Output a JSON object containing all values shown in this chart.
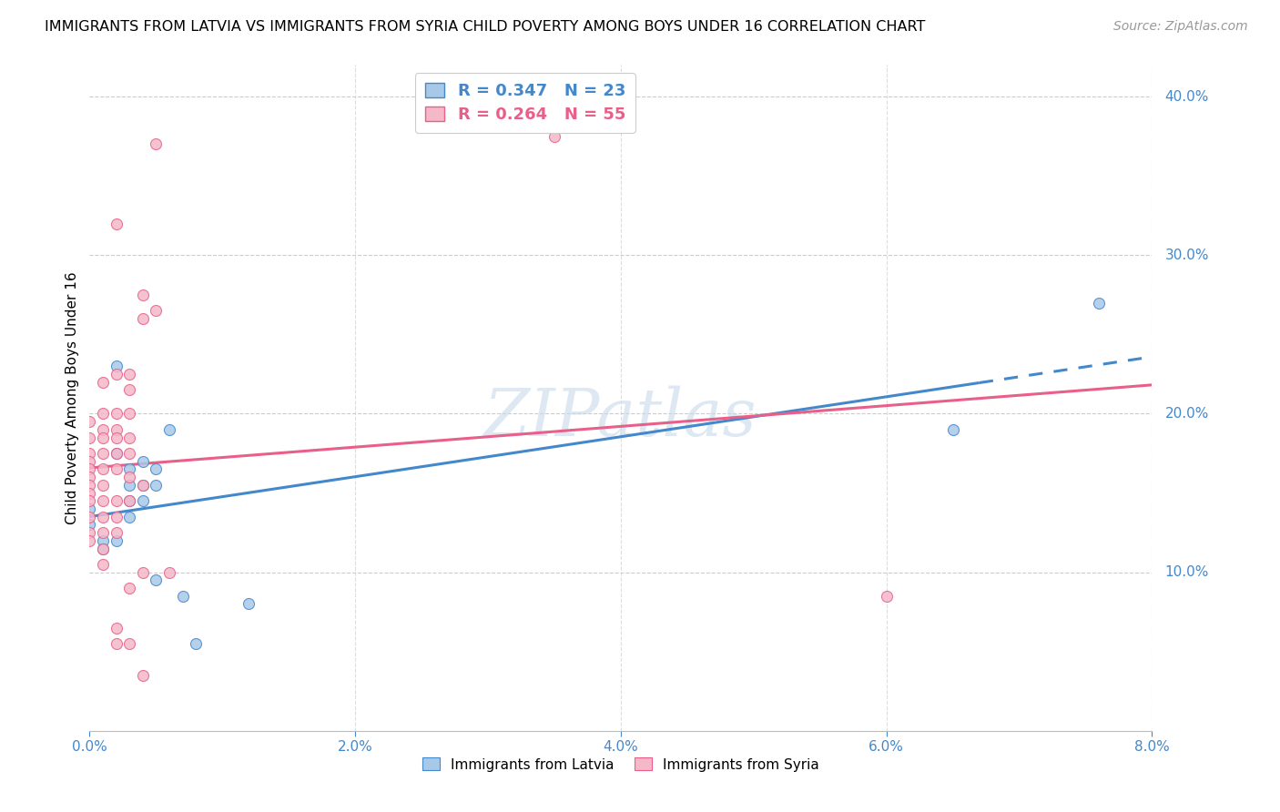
{
  "title": "IMMIGRANTS FROM LATVIA VS IMMIGRANTS FROM SYRIA CHILD POVERTY AMONG BOYS UNDER 16 CORRELATION CHART",
  "source": "Source: ZipAtlas.com",
  "ylabel": "Child Poverty Among Boys Under 16",
  "watermark": "ZIPatlas",
  "latvia_color": "#a8c8e8",
  "syria_color": "#f4b8c8",
  "latvia_line_color": "#4488cc",
  "syria_line_color": "#e8608a",
  "latvia_R": 0.347,
  "latvia_N": 23,
  "syria_R": 0.264,
  "syria_N": 55,
  "xlim": [
    0.0,
    0.08
  ],
  "ylim": [
    0.0,
    0.42
  ],
  "latvia_points": [
    [
      0.0,
      0.14
    ],
    [
      0.0,
      0.13
    ],
    [
      0.001,
      0.12
    ],
    [
      0.001,
      0.115
    ],
    [
      0.002,
      0.23
    ],
    [
      0.002,
      0.175
    ],
    [
      0.002,
      0.12
    ],
    [
      0.003,
      0.165
    ],
    [
      0.003,
      0.155
    ],
    [
      0.003,
      0.145
    ],
    [
      0.003,
      0.135
    ],
    [
      0.004,
      0.17
    ],
    [
      0.004,
      0.155
    ],
    [
      0.004,
      0.145
    ],
    [
      0.005,
      0.165
    ],
    [
      0.005,
      0.155
    ],
    [
      0.005,
      0.095
    ],
    [
      0.006,
      0.19
    ],
    [
      0.007,
      0.085
    ],
    [
      0.008,
      0.055
    ],
    [
      0.012,
      0.08
    ],
    [
      0.065,
      0.19
    ],
    [
      0.076,
      0.27
    ]
  ],
  "syria_points": [
    [
      0.0,
      0.195
    ],
    [
      0.0,
      0.185
    ],
    [
      0.0,
      0.175
    ],
    [
      0.0,
      0.17
    ],
    [
      0.0,
      0.165
    ],
    [
      0.0,
      0.16
    ],
    [
      0.0,
      0.155
    ],
    [
      0.0,
      0.15
    ],
    [
      0.0,
      0.145
    ],
    [
      0.0,
      0.135
    ],
    [
      0.0,
      0.125
    ],
    [
      0.0,
      0.12
    ],
    [
      0.001,
      0.22
    ],
    [
      0.001,
      0.2
    ],
    [
      0.001,
      0.19
    ],
    [
      0.001,
      0.185
    ],
    [
      0.001,
      0.175
    ],
    [
      0.001,
      0.165
    ],
    [
      0.001,
      0.155
    ],
    [
      0.001,
      0.145
    ],
    [
      0.001,
      0.135
    ],
    [
      0.001,
      0.125
    ],
    [
      0.001,
      0.115
    ],
    [
      0.001,
      0.105
    ],
    [
      0.002,
      0.32
    ],
    [
      0.002,
      0.225
    ],
    [
      0.002,
      0.2
    ],
    [
      0.002,
      0.19
    ],
    [
      0.002,
      0.185
    ],
    [
      0.002,
      0.175
    ],
    [
      0.002,
      0.165
    ],
    [
      0.002,
      0.145
    ],
    [
      0.002,
      0.135
    ],
    [
      0.002,
      0.125
    ],
    [
      0.002,
      0.065
    ],
    [
      0.002,
      0.055
    ],
    [
      0.003,
      0.225
    ],
    [
      0.003,
      0.215
    ],
    [
      0.003,
      0.2
    ],
    [
      0.003,
      0.185
    ],
    [
      0.003,
      0.175
    ],
    [
      0.003,
      0.16
    ],
    [
      0.003,
      0.145
    ],
    [
      0.003,
      0.09
    ],
    [
      0.003,
      0.055
    ],
    [
      0.004,
      0.275
    ],
    [
      0.004,
      0.26
    ],
    [
      0.004,
      0.155
    ],
    [
      0.004,
      0.1
    ],
    [
      0.004,
      0.035
    ],
    [
      0.005,
      0.37
    ],
    [
      0.005,
      0.265
    ],
    [
      0.006,
      0.1
    ],
    [
      0.035,
      0.375
    ],
    [
      0.06,
      0.085
    ]
  ],
  "title_fontsize": 11.5,
  "source_fontsize": 10,
  "axis_label_fontsize": 11,
  "tick_fontsize": 11,
  "watermark_fontsize": 52,
  "marker_size": 75,
  "line_width": 2.2
}
